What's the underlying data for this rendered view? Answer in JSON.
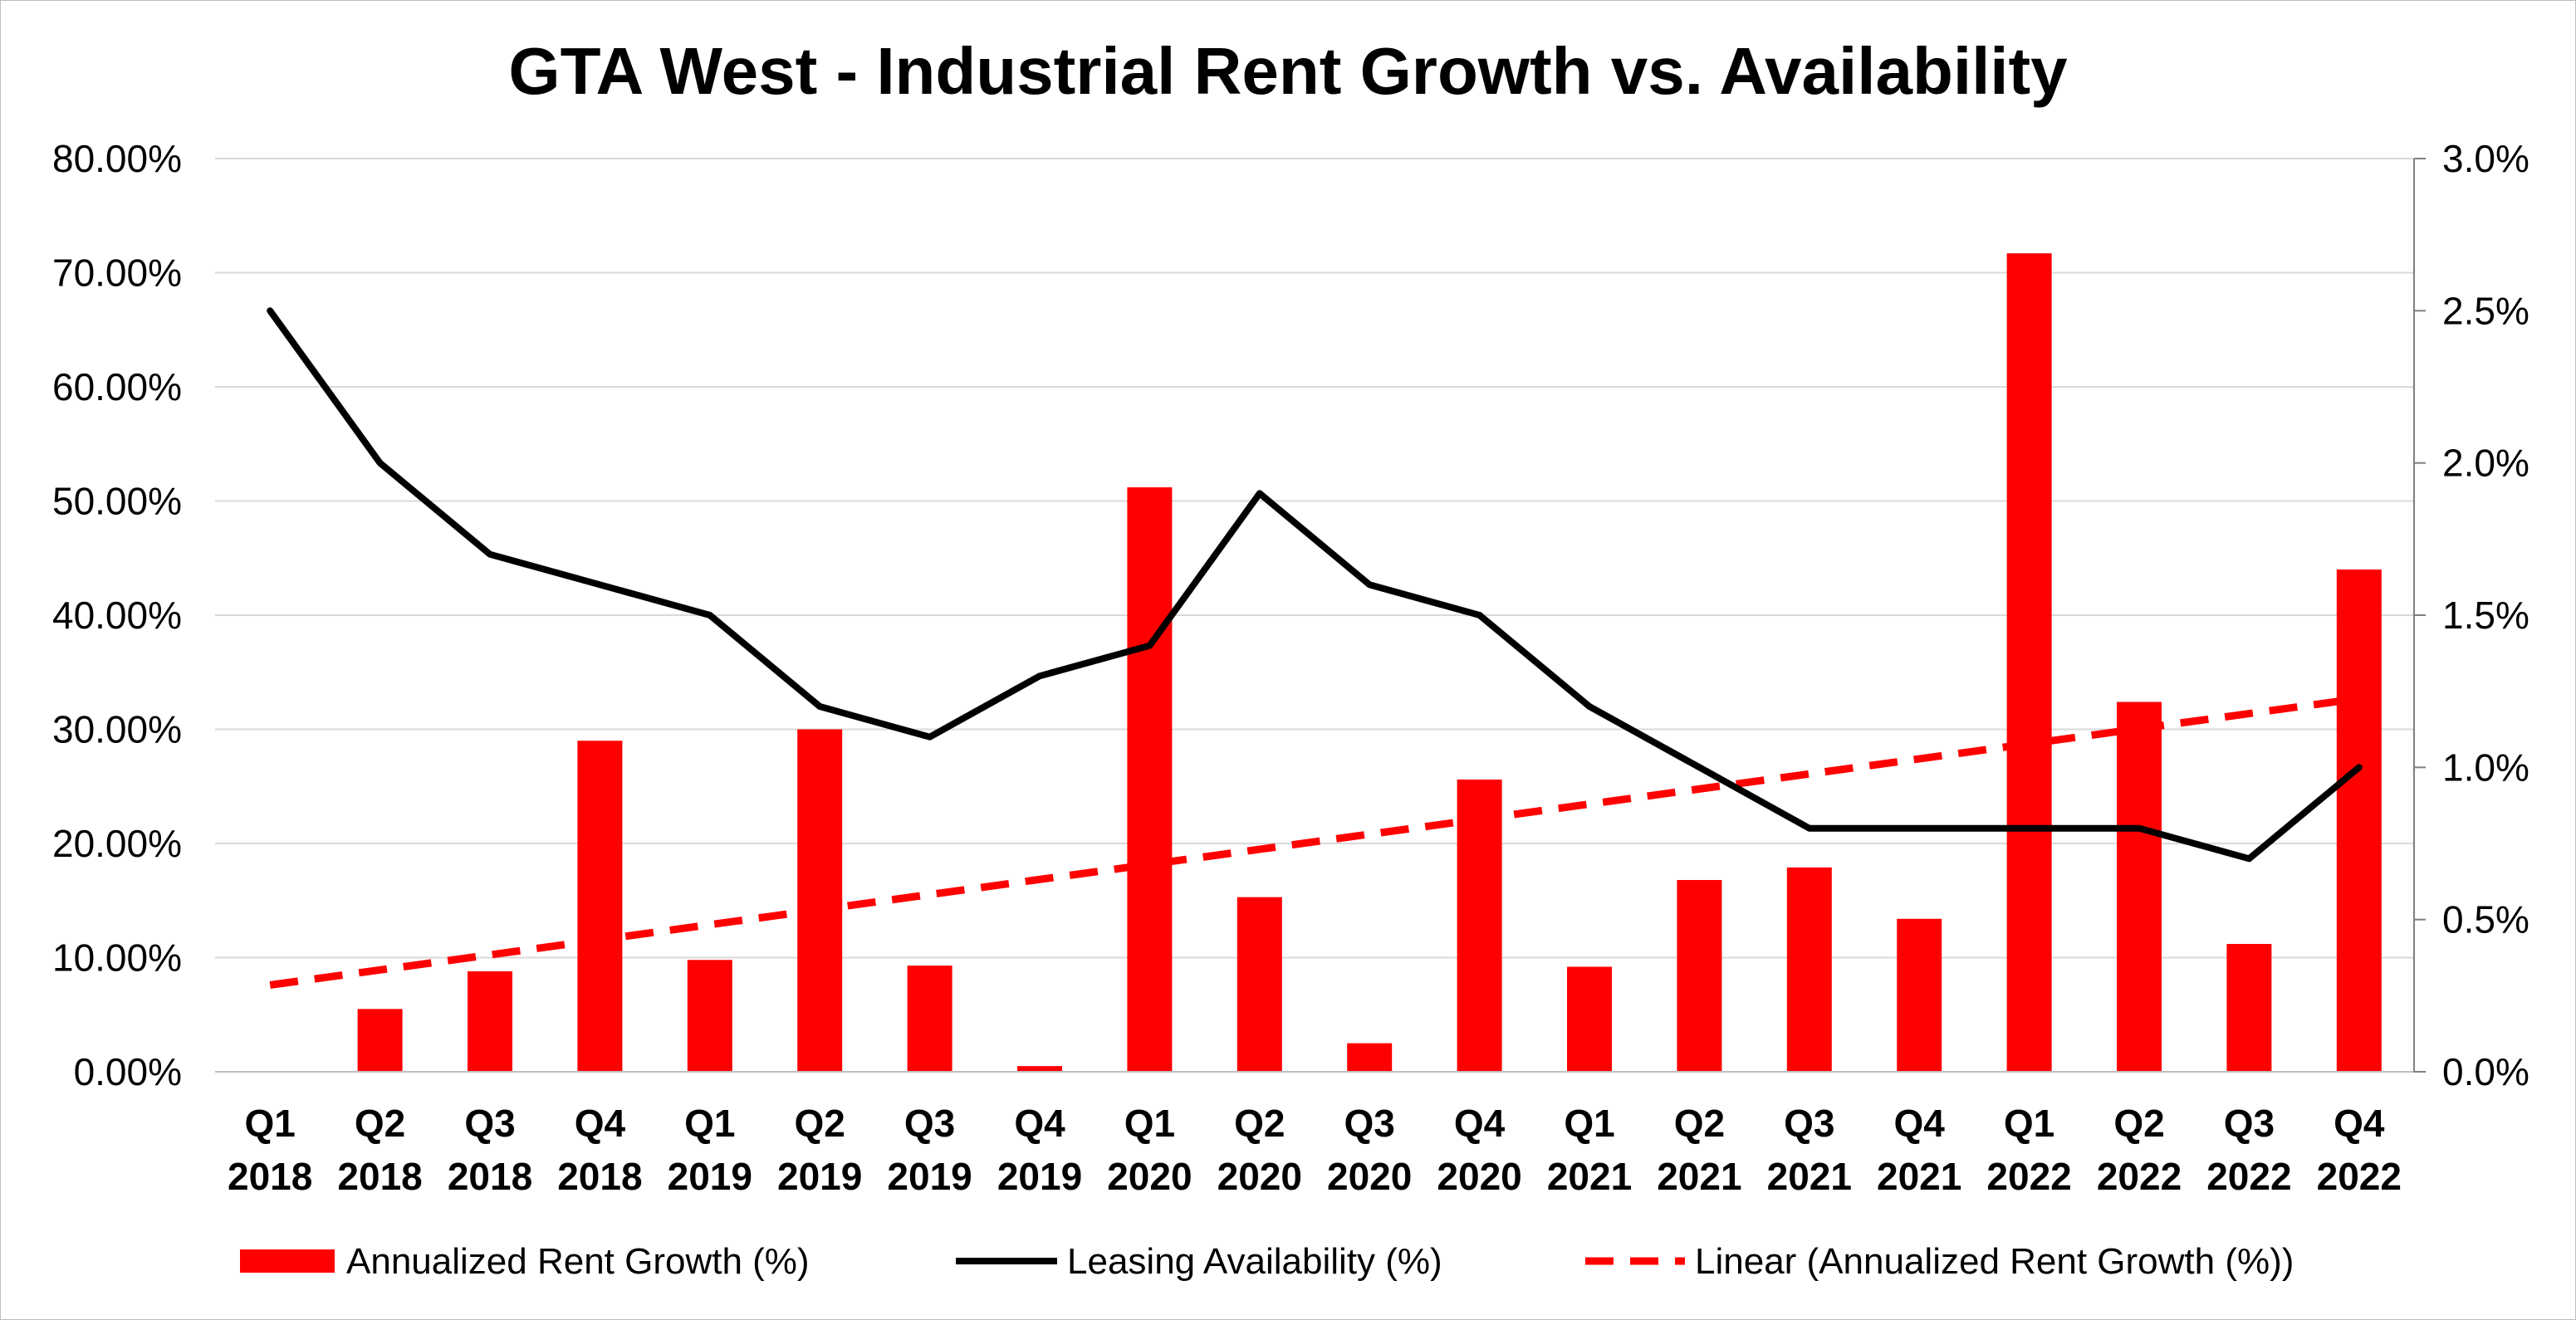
{
  "chart_data": {
    "type": "bar",
    "title": "GTA West - Industrial Rent Growth vs. Availability",
    "categories": [
      [
        "Q1",
        "2018"
      ],
      [
        "Q2",
        "2018"
      ],
      [
        "Q3",
        "2018"
      ],
      [
        "Q4",
        "2018"
      ],
      [
        "Q1",
        "2019"
      ],
      [
        "Q2",
        "2019"
      ],
      [
        "Q3",
        "2019"
      ],
      [
        "Q4",
        "2019"
      ],
      [
        "Q1",
        "2020"
      ],
      [
        "Q2",
        "2020"
      ],
      [
        "Q3",
        "2020"
      ],
      [
        "Q4",
        "2020"
      ],
      [
        "Q1",
        "2021"
      ],
      [
        "Q2",
        "2021"
      ],
      [
        "Q3",
        "2021"
      ],
      [
        "Q4",
        "2021"
      ],
      [
        "Q1",
        "2022"
      ],
      [
        "Q2",
        "2022"
      ],
      [
        "Q3",
        "2022"
      ],
      [
        "Q4",
        "2022"
      ]
    ],
    "series": [
      {
        "name": "Annualized Rent Growth (%)",
        "type": "bar",
        "axis": "left",
        "color": "#ff0000",
        "values": [
          0.0,
          5.5,
          8.8,
          29.0,
          9.8,
          30.0,
          9.3,
          0.5,
          51.2,
          15.3,
          2.5,
          25.6,
          9.2,
          16.8,
          17.9,
          13.4,
          71.7,
          32.4,
          11.2,
          44.0
        ]
      },
      {
        "name": "Leasing Availability (%)",
        "type": "line",
        "axis": "right",
        "color": "#000000",
        "values": [
          2.5,
          2.0,
          1.7,
          1.6,
          1.5,
          1.2,
          1.1,
          1.3,
          1.4,
          1.9,
          1.6,
          1.5,
          1.2,
          1.0,
          0.8,
          0.8,
          0.8,
          0.8,
          0.7,
          1.0
        ]
      },
      {
        "name": "Linear (Annualized Rent Growth (%))",
        "type": "trendline",
        "axis": "left",
        "color": "#ff0000",
        "start": 7.6,
        "end": 32.7
      }
    ],
    "y_left": {
      "min": 0,
      "max": 80,
      "step": 10,
      "tick_labels": [
        "0.00%",
        "10.00%",
        "20.00%",
        "30.00%",
        "40.00%",
        "50.00%",
        "60.00%",
        "70.00%",
        "80.00%"
      ]
    },
    "y_right": {
      "min": 0,
      "max": 3,
      "step": 0.5,
      "tick_labels": [
        "0.0%",
        "0.5%",
        "1.0%",
        "1.5%",
        "2.0%",
        "2.5%",
        "3.0%"
      ]
    },
    "grid": true,
    "legend_position": "bottom"
  }
}
